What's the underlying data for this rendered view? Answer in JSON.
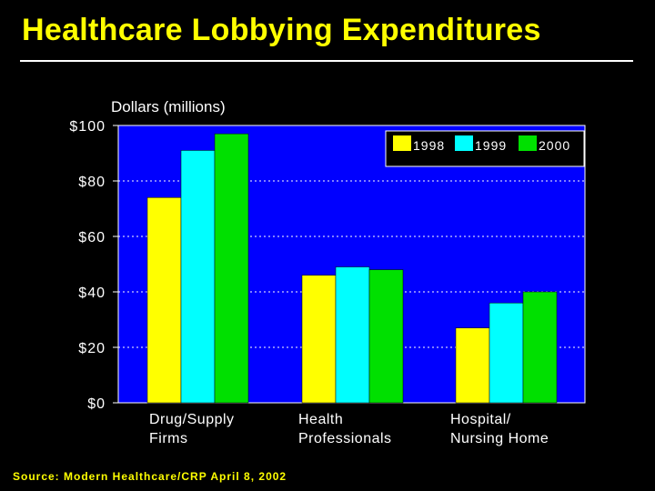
{
  "chart_data": {
    "type": "bar",
    "title": "Healthcare Lobbying Expenditures",
    "ylabel": "Dollars (millions)",
    "xlabel": "",
    "ylim": [
      0,
      100
    ],
    "yticks": [
      "$0",
      "$20",
      "$40",
      "$60",
      "$80",
      "$100"
    ],
    "categories": [
      "Drug/Supply\nFirms",
      "Health\nProfessionals",
      "Hospital/\nNursing Home"
    ],
    "series": [
      {
        "name": "1998",
        "values": [
          74,
          46,
          27
        ]
      },
      {
        "name": "1999",
        "values": [
          91,
          49,
          36
        ]
      },
      {
        "name": "2000",
        "values": [
          97,
          48,
          40
        ]
      }
    ],
    "legend_position": "top-right",
    "grid": true,
    "source": "Source: Modern Healthcare/CRP April 8, 2002"
  },
  "colors": {
    "background": "#000000",
    "plot_background": "#0000ff",
    "title": "#ffff00",
    "series": [
      "#ffff00",
      "#00ffff",
      "#00e000"
    ],
    "text": "#ffffff",
    "source": "#ffff00"
  }
}
